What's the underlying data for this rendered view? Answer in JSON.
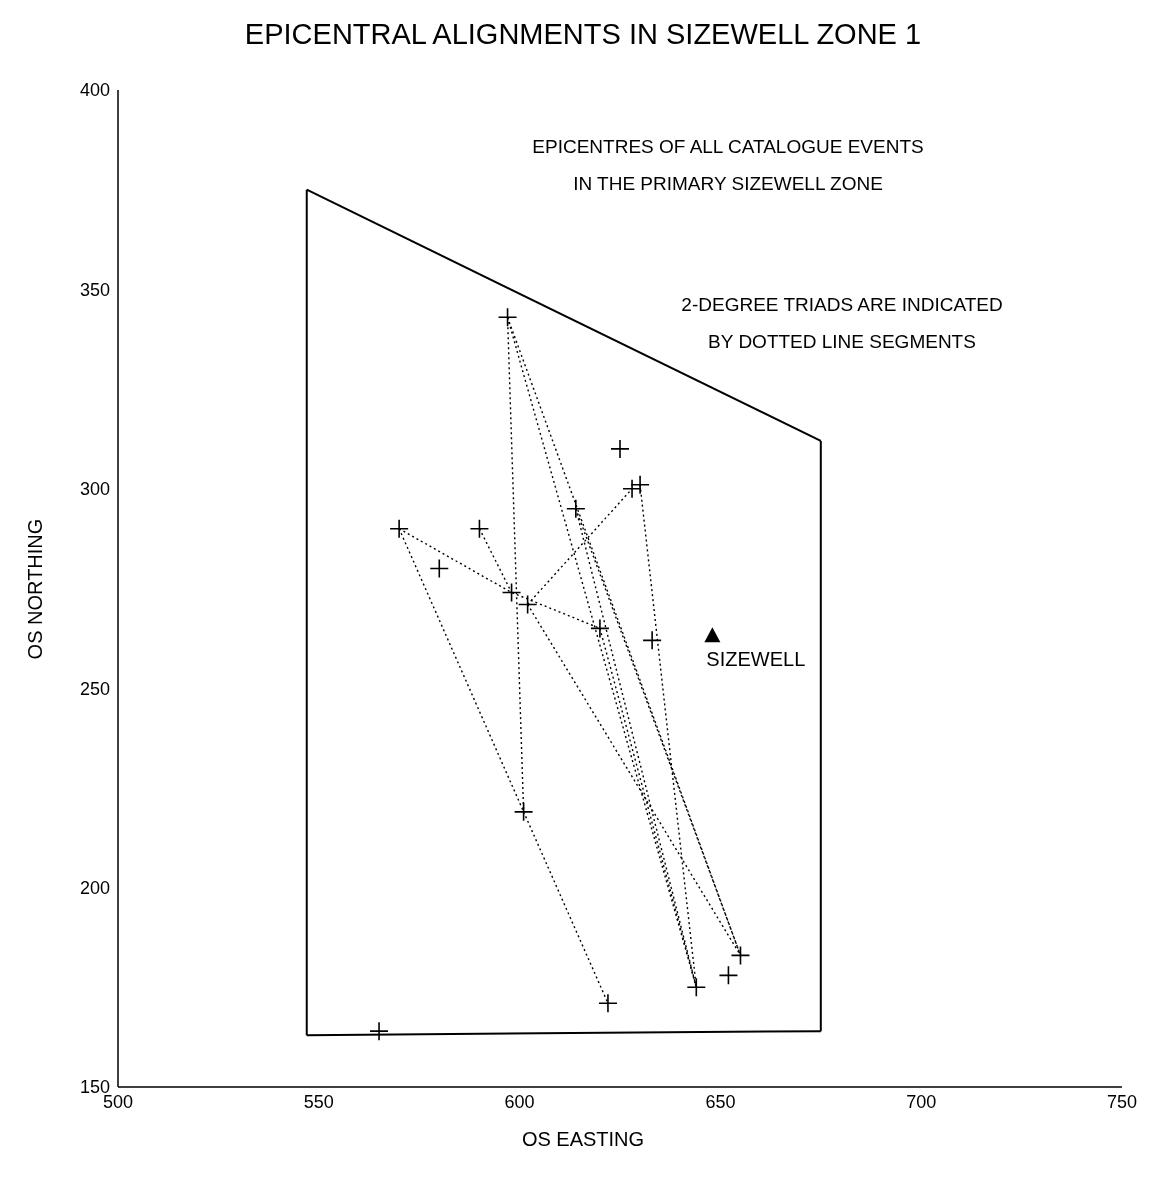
{
  "chart_data": {
    "type": "scatter",
    "title": "EPICENTRAL ALIGNMENTS IN SIZEWELL ZONE 1",
    "xlabel": "OS  EASTING",
    "ylabel": "OS NORTHING",
    "xlim": [
      500,
      750
    ],
    "xticks": [
      500,
      550,
      600,
      650,
      700,
      750
    ],
    "ylim": [
      150,
      400
    ],
    "yticks": [
      150,
      200,
      250,
      300,
      350,
      400
    ],
    "grid": false,
    "annotations": [
      "EPICENTRES OF ALL CATALOGUE EVENTS\nIN THE PRIMARY SIZEWELL ZONE",
      "2-DEGREE TRIADS ARE INDICATED\nBY DOTTED LINE SEGMENTS",
      {
        "text": "SIZEWELL",
        "x": 648,
        "y": 263
      }
    ],
    "series": [
      {
        "type": "line",
        "color": "#000000",
        "line_style": "dotted",
        "marker": "none",
        "x": [
          597,
          601
        ],
        "values": [
          343,
          219
        ]
      },
      {
        "type": "line",
        "color": "#000000",
        "line_style": "dotted",
        "marker": "none",
        "x": [
          597,
          644
        ],
        "values": [
          343,
          175
        ]
      },
      {
        "type": "line",
        "color": "#000000",
        "line_style": "dotted",
        "marker": "none",
        "x": [
          597,
          655
        ],
        "values": [
          343,
          183
        ]
      },
      {
        "type": "line",
        "color": "#000000",
        "line_style": "dotted",
        "marker": "none",
        "x": [
          570,
          598,
          620
        ],
        "values": [
          290,
          274,
          265
        ]
      },
      {
        "type": "line",
        "color": "#000000",
        "line_style": "dotted",
        "marker": "none",
        "x": [
          570,
          601
        ],
        "values": [
          290,
          219
        ]
      },
      {
        "type": "line",
        "color": "#000000",
        "line_style": "dotted",
        "marker": "none",
        "x": [
          590,
          598
        ],
        "values": [
          290,
          274
        ]
      },
      {
        "type": "line",
        "color": "#000000",
        "line_style": "dotted",
        "marker": "none",
        "x": [
          602,
          628
        ],
        "values": [
          271,
          300
        ]
      },
      {
        "type": "line",
        "color": "#000000",
        "line_style": "dotted",
        "marker": "none",
        "x": [
          602,
          655
        ],
        "values": [
          271,
          183
        ]
      },
      {
        "type": "line",
        "color": "#000000",
        "line_style": "dotted",
        "marker": "none",
        "x": [
          601,
          622
        ],
        "values": [
          219,
          171
        ]
      },
      {
        "type": "line",
        "color": "#000000",
        "line_style": "dotted",
        "marker": "none",
        "x": [
          630,
          644
        ],
        "values": [
          301,
          175
        ]
      },
      {
        "type": "line",
        "color": "#000000",
        "line_style": "dotted",
        "marker": "none",
        "x": [
          614,
          644
        ],
        "values": [
          295,
          175
        ]
      },
      {
        "type": "line",
        "color": "#000000",
        "line_style": "dotted",
        "marker": "none",
        "x": [
          614,
          655
        ],
        "values": [
          295,
          183
        ]
      },
      {
        "type": "line",
        "color": "#000000",
        "line_style": "dotted",
        "marker": "none",
        "x": [
          620,
          644
        ],
        "values": [
          265,
          175
        ]
      },
      {
        "type": "line",
        "color": "#000000",
        "line_style": "solid",
        "marker": "none",
        "x": [
          547,
          675
        ],
        "values": [
          375,
          312
        ]
      },
      {
        "type": "line",
        "color": "#000000",
        "line_style": "solid",
        "marker": "none",
        "x": [
          675,
          675
        ],
        "values": [
          312,
          164
        ]
      },
      {
        "type": "line",
        "color": "#000000",
        "line_style": "solid",
        "marker": "none",
        "x": [
          675,
          547
        ],
        "values": [
          164,
          163
        ]
      },
      {
        "type": "line",
        "color": "#000000",
        "line_style": "solid",
        "marker": "none",
        "x": [
          547,
          547
        ],
        "values": [
          163,
          375
        ]
      },
      {
        "type": "scatter",
        "color": "#000000",
        "marker": "cross",
        "x": [
          597,
          570,
          590,
          580,
          598,
          602,
          614,
          625,
          628,
          630,
          620,
          633,
          601,
          622,
          644,
          652,
          655,
          565
        ],
        "values": [
          343,
          290,
          290,
          280,
          274,
          271,
          295,
          310,
          300,
          301,
          265,
          262,
          219,
          171,
          175,
          178,
          183,
          164
        ]
      },
      {
        "type": "scatter",
        "color": "#000000",
        "marker": "triangle",
        "x": [
          648
        ],
        "values": [
          263
        ]
      }
    ]
  }
}
